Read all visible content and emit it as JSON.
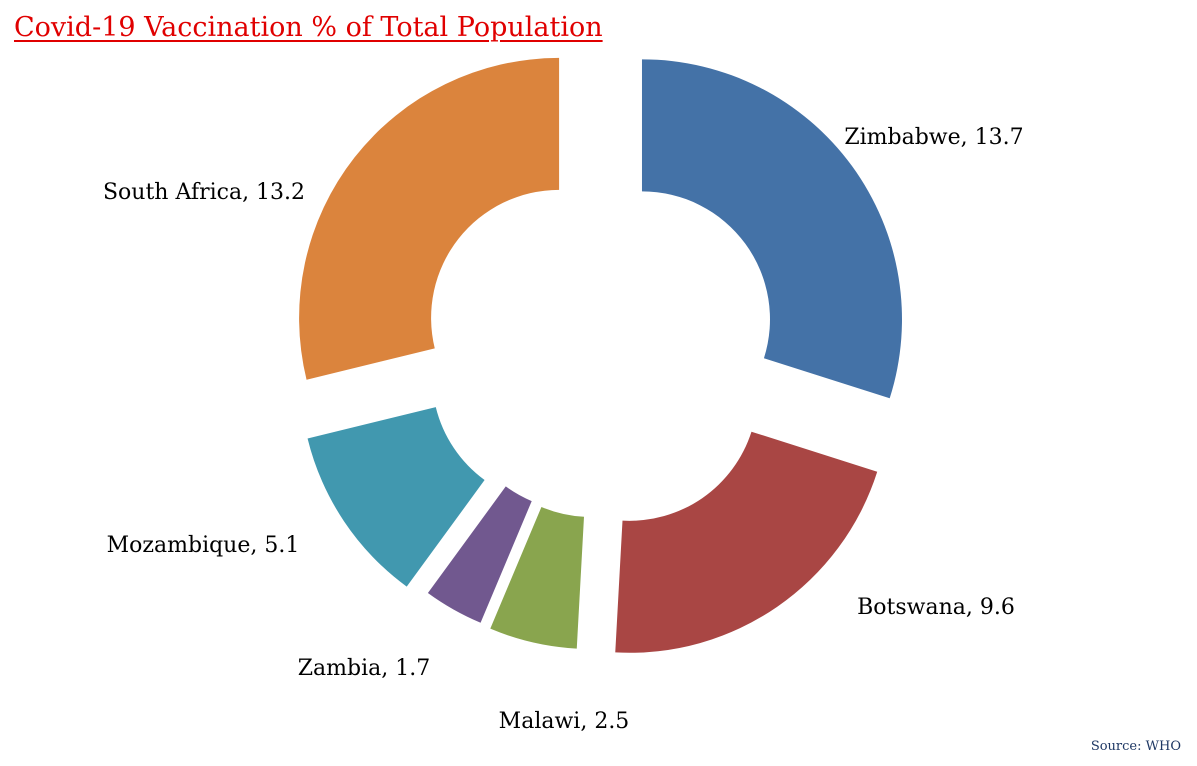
{
  "chart_data": {
    "type": "pie",
    "title": "Covid-19 Vaccination % of Total Population",
    "source": "Source: WHO",
    "categories": [
      "Zimbabwe",
      "Botswana",
      "Malawi",
      "Zambia",
      "Mozambique",
      "South Africa"
    ],
    "values": [
      13.7,
      9.6,
      2.5,
      1.7,
      5.1,
      13.2
    ],
    "colors": [
      "#4472a7",
      "#a94644",
      "#89a54e",
      "#71588f",
      "#4198af",
      "#db843d"
    ],
    "data_labels": [
      "Zimbabwe, 13.7",
      "Botswana, 9.6",
      "Malawi, 2.5",
      "Zambia, 1.7",
      "Mozambique, 5.1",
      "South Africa, 13.2"
    ],
    "style": "exploded doughnut",
    "legend": "none"
  }
}
